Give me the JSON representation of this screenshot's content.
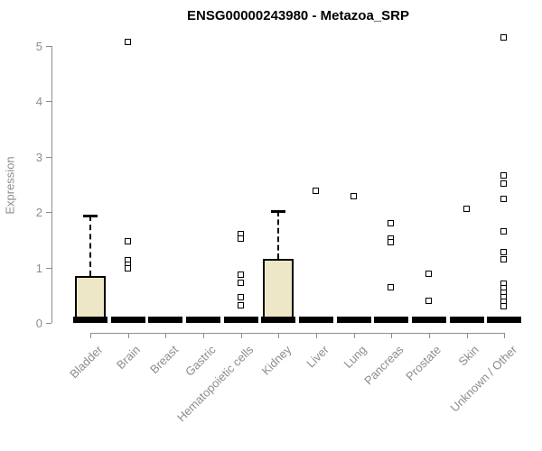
{
  "chart_data": {
    "type": "boxplot",
    "title": "ENSG00000243980 - Metazoa_SRP",
    "ylabel": "Expression",
    "xlabel": "",
    "ylim": [
      0,
      5
    ],
    "yticks": [
      0,
      1,
      2,
      3,
      4,
      5
    ],
    "grid": false,
    "legend": "none",
    "box_fill_color": "#EDE7C8",
    "box_border_color": "#000000",
    "axis_color": "#8c8c8c",
    "categories": [
      "Bladder",
      "Brain",
      "Breast",
      "Gastric",
      "Hematopoietic cells",
      "Kidney",
      "Liver",
      "Lung",
      "Pancreas",
      "Prostate",
      "Skin",
      "Unknown / Other"
    ],
    "boxes": [
      {
        "category": "Bladder",
        "q1": 0,
        "median": 0,
        "q3": 0.85,
        "whisker_low": 0,
        "whisker_high": 1.93,
        "outliers": []
      },
      {
        "category": "Brain",
        "q1": 0,
        "median": 0,
        "q3": 0,
        "whisker_low": 0,
        "whisker_high": 0,
        "outliers": [
          5.06,
          1.47,
          1.12,
          1.05,
          0.98
        ]
      },
      {
        "category": "Breast",
        "q1": 0,
        "median": 0,
        "q3": 0,
        "whisker_low": 0,
        "whisker_high": 0,
        "outliers": []
      },
      {
        "category": "Gastric",
        "q1": 0,
        "median": 0,
        "q3": 0,
        "whisker_low": 0,
        "whisker_high": 0,
        "outliers": []
      },
      {
        "category": "Hematopoietic cells",
        "q1": 0,
        "median": 0,
        "q3": 0,
        "whisker_low": 0,
        "whisker_high": 0,
        "outliers": [
          1.6,
          1.51,
          0.86,
          0.72,
          0.46,
          0.31
        ]
      },
      {
        "category": "Kidney",
        "q1": 0,
        "median": 0,
        "q3": 1.15,
        "whisker_low": 0,
        "whisker_high": 2.02,
        "outliers": []
      },
      {
        "category": "Liver",
        "q1": 0,
        "median": 0,
        "q3": 0,
        "whisker_low": 0,
        "whisker_high": 0,
        "outliers": [
          2.37
        ]
      },
      {
        "category": "Lung",
        "q1": 0,
        "median": 0,
        "q3": 0,
        "whisker_low": 0,
        "whisker_high": 0,
        "outliers": [
          2.28
        ]
      },
      {
        "category": "Pancreas",
        "q1": 0,
        "median": 0,
        "q3": 0,
        "whisker_low": 0,
        "whisker_high": 0,
        "outliers": [
          1.79,
          1.51,
          1.45,
          0.64
        ]
      },
      {
        "category": "Prostate",
        "q1": 0,
        "median": 0,
        "q3": 0,
        "whisker_low": 0,
        "whisker_high": 0,
        "outliers": [
          0.88,
          0.39
        ]
      },
      {
        "category": "Skin",
        "q1": 0,
        "median": 0,
        "q3": 0,
        "whisker_low": 0,
        "whisker_high": 0,
        "outliers": [
          2.05
        ]
      },
      {
        "category": "Unknown / Other",
        "q1": 0,
        "median": 0,
        "q3": 0,
        "whisker_low": 0,
        "whisker_high": 0,
        "outliers": [
          5.15,
          2.66,
          2.51,
          2.23,
          1.64,
          1.27,
          1.14,
          0.7,
          0.62,
          0.54,
          0.46,
          0.38,
          0.29
        ]
      }
    ]
  }
}
